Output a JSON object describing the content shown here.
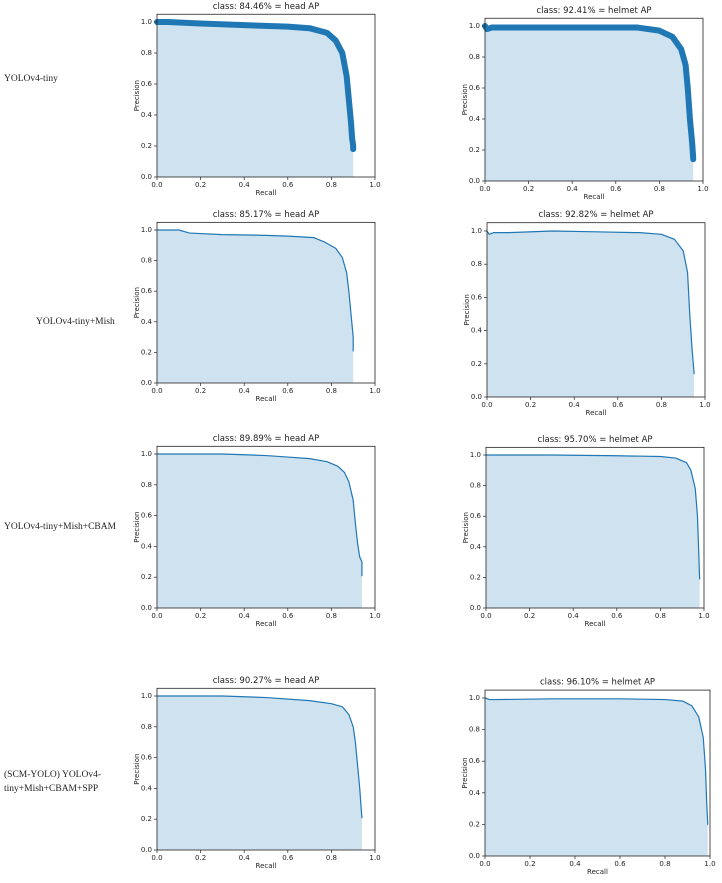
{
  "row_labels": [
    "YOLOv4-tiny",
    "YOLOv4-tiny+Mish",
    "YOLOv4-tiny+Mish+CBAM",
    "(SCM-YOLO) YOLOv4-tiny+Mish+CBAM+SPP"
  ],
  "chart_data": [
    {
      "type": "area",
      "title": "class: 84.46% = head AP",
      "xlabel": "Recall",
      "ylabel": "Precision",
      "line_width": 6,
      "xlim": [
        0,
        1
      ],
      "ylim": [
        0,
        1.05
      ],
      "xticks": [
        {
          "value": 0,
          "label": "0.0"
        },
        {
          "value": 0.2,
          "label": "0.2"
        },
        {
          "value": 0.4,
          "label": "0.4"
        },
        {
          "value": 0.6,
          "label": "0.6"
        },
        {
          "value": 0.8,
          "label": "0.8"
        },
        {
          "value": 1,
          "label": "1.0"
        }
      ],
      "yticks": [
        {
          "value": 0,
          "label": "0.0"
        },
        {
          "value": 0.2,
          "label": "0.2"
        },
        {
          "value": 0.4,
          "label": "0.4"
        },
        {
          "value": 0.6,
          "label": "0.6"
        },
        {
          "value": 0.8,
          "label": "0.8"
        },
        {
          "value": 1,
          "label": "1.0"
        }
      ],
      "series": [
        {
          "color": "#1f77b4",
          "fill": "#cfe2f0",
          "x": [
            0,
            0.05,
            0.2,
            0.4,
            0.6,
            0.7,
            0.78,
            0.82,
            0.85,
            0.87,
            0.88,
            0.89,
            0.895,
            0.9,
            0.9
          ],
          "values": [
            1,
            1,
            0.99,
            0.98,
            0.97,
            0.96,
            0.93,
            0.88,
            0.8,
            0.65,
            0.5,
            0.35,
            0.25,
            0.2,
            0.18
          ]
        }
      ]
    },
    {
      "type": "area",
      "title": "class: 92.41% = helmet AP",
      "xlabel": "Recall",
      "ylabel": "Precision",
      "line_width": 6,
      "xlim": [
        0,
        1
      ],
      "ylim": [
        0,
        1.05
      ],
      "xticks": [
        {
          "value": 0,
          "label": "0.0"
        },
        {
          "value": 0.2,
          "label": "0.2"
        },
        {
          "value": 0.4,
          "label": "0.4"
        },
        {
          "value": 0.6,
          "label": "0.6"
        },
        {
          "value": 0.8,
          "label": "0.8"
        },
        {
          "value": 1,
          "label": "1.0"
        }
      ],
      "yticks": [
        {
          "value": 0,
          "label": "0.0"
        },
        {
          "value": 0.2,
          "label": "0.2"
        },
        {
          "value": 0.4,
          "label": "0.4"
        },
        {
          "value": 0.6,
          "label": "0.6"
        },
        {
          "value": 0.8,
          "label": "0.8"
        },
        {
          "value": 1,
          "label": "1.0"
        }
      ],
      "series": [
        {
          "color": "#1f77b4",
          "fill": "#cfe2f0",
          "x": [
            0,
            0.01,
            0.03,
            0.2,
            0.5,
            0.7,
            0.8,
            0.86,
            0.9,
            0.92,
            0.93,
            0.94,
            0.95,
            0.955,
            0.955
          ],
          "values": [
            1,
            0.98,
            0.99,
            0.99,
            0.99,
            0.99,
            0.97,
            0.93,
            0.85,
            0.75,
            0.6,
            0.4,
            0.25,
            0.15,
            0.14
          ]
        }
      ]
    },
    {
      "type": "area",
      "title": "class: 85.17% = head AP",
      "xlabel": "Recall",
      "ylabel": "Precision",
      "line_width": 1.2,
      "xlim": [
        0,
        1
      ],
      "ylim": [
        0,
        1.05
      ],
      "xticks": [
        {
          "value": 0,
          "label": "0.0"
        },
        {
          "value": 0.2,
          "label": "0.2"
        },
        {
          "value": 0.4,
          "label": "0.4"
        },
        {
          "value": 0.6,
          "label": "0.6"
        },
        {
          "value": 0.8,
          "label": "0.8"
        },
        {
          "value": 1,
          "label": "1.0"
        }
      ],
      "yticks": [
        {
          "value": 0,
          "label": "0.0"
        },
        {
          "value": 0.2,
          "label": "0.2"
        },
        {
          "value": 0.4,
          "label": "0.4"
        },
        {
          "value": 0.6,
          "label": "0.6"
        },
        {
          "value": 0.8,
          "label": "0.8"
        },
        {
          "value": 1,
          "label": "1.0"
        }
      ],
      "series": [
        {
          "color": "#1f77b4",
          "fill": "#cfe2f0",
          "x": [
            0,
            0.1,
            0.15,
            0.3,
            0.5,
            0.6,
            0.72,
            0.77,
            0.82,
            0.85,
            0.87,
            0.88,
            0.89,
            0.9,
            0.9
          ],
          "values": [
            1,
            1,
            0.98,
            0.97,
            0.965,
            0.96,
            0.95,
            0.92,
            0.88,
            0.82,
            0.72,
            0.6,
            0.45,
            0.3,
            0.21
          ]
        }
      ]
    },
    {
      "type": "area",
      "title": "class: 92.82% = helmet AP",
      "xlabel": "Recall",
      "ylabel": "Precision",
      "line_width": 1.2,
      "xlim": [
        0,
        1
      ],
      "ylim": [
        0,
        1.05
      ],
      "xticks": [
        {
          "value": 0,
          "label": "0.0"
        },
        {
          "value": 0.2,
          "label": "0.2"
        },
        {
          "value": 0.4,
          "label": "0.4"
        },
        {
          "value": 0.6,
          "label": "0.6"
        },
        {
          "value": 0.8,
          "label": "0.8"
        },
        {
          "value": 1,
          "label": "1.0"
        }
      ],
      "yticks": [
        {
          "value": 0,
          "label": "0.0"
        },
        {
          "value": 0.2,
          "label": "0.2"
        },
        {
          "value": 0.4,
          "label": "0.4"
        },
        {
          "value": 0.6,
          "label": "0.6"
        },
        {
          "value": 0.8,
          "label": "0.8"
        },
        {
          "value": 1,
          "label": "1.0"
        }
      ],
      "series": [
        {
          "color": "#1f77b4",
          "fill": "#cfe2f0",
          "x": [
            0,
            0.01,
            0.03,
            0.1,
            0.3,
            0.5,
            0.7,
            0.8,
            0.86,
            0.9,
            0.92,
            0.93,
            0.94,
            0.95
          ],
          "values": [
            1,
            0.98,
            0.99,
            0.99,
            1,
            0.995,
            0.99,
            0.98,
            0.95,
            0.88,
            0.75,
            0.5,
            0.3,
            0.14
          ]
        }
      ]
    },
    {
      "type": "area",
      "title": "class: 89.89% = head AP",
      "xlabel": "Recall",
      "ylabel": "Precision",
      "line_width": 1.2,
      "xlim": [
        0,
        1
      ],
      "ylim": [
        0,
        1.05
      ],
      "xticks": [
        {
          "value": 0,
          "label": "0.0"
        },
        {
          "value": 0.2,
          "label": "0.2"
        },
        {
          "value": 0.4,
          "label": "0.4"
        },
        {
          "value": 0.6,
          "label": "0.6"
        },
        {
          "value": 0.8,
          "label": "0.8"
        },
        {
          "value": 1,
          "label": "1.0"
        }
      ],
      "yticks": [
        {
          "value": 0,
          "label": "0.0"
        },
        {
          "value": 0.2,
          "label": "0.2"
        },
        {
          "value": 0.4,
          "label": "0.4"
        },
        {
          "value": 0.6,
          "label": "0.6"
        },
        {
          "value": 0.8,
          "label": "0.8"
        },
        {
          "value": 1,
          "label": "1.0"
        }
      ],
      "series": [
        {
          "color": "#1f77b4",
          "fill": "#cfe2f0",
          "x": [
            0,
            0.3,
            0.5,
            0.6,
            0.7,
            0.78,
            0.83,
            0.86,
            0.88,
            0.9,
            0.91,
            0.92,
            0.93,
            0.94,
            0.94
          ],
          "values": [
            1,
            1,
            0.99,
            0.98,
            0.97,
            0.95,
            0.92,
            0.88,
            0.82,
            0.7,
            0.55,
            0.42,
            0.33,
            0.3,
            0.21
          ]
        }
      ]
    },
    {
      "type": "area",
      "title": "class: 95.70% = helmet AP",
      "xlabel": "Recall",
      "ylabel": "Precision",
      "line_width": 1.2,
      "xlim": [
        0,
        1
      ],
      "ylim": [
        0,
        1.05
      ],
      "xticks": [
        {
          "value": 0,
          "label": "0.0"
        },
        {
          "value": 0.2,
          "label": "0.2"
        },
        {
          "value": 0.4,
          "label": "0.4"
        },
        {
          "value": 0.6,
          "label": "0.6"
        },
        {
          "value": 0.8,
          "label": "0.8"
        },
        {
          "value": 1,
          "label": "1.0"
        }
      ],
      "yticks": [
        {
          "value": 0,
          "label": "0.0"
        },
        {
          "value": 0.2,
          "label": "0.2"
        },
        {
          "value": 0.4,
          "label": "0.4"
        },
        {
          "value": 0.6,
          "label": "0.6"
        },
        {
          "value": 0.8,
          "label": "0.8"
        },
        {
          "value": 1,
          "label": "1.0"
        }
      ],
      "series": [
        {
          "color": "#1f77b4",
          "fill": "#cfe2f0",
          "x": [
            0,
            0.3,
            0.6,
            0.8,
            0.87,
            0.92,
            0.94,
            0.96,
            0.97,
            0.975,
            0.98
          ],
          "values": [
            1,
            1,
            0.995,
            0.99,
            0.98,
            0.95,
            0.9,
            0.78,
            0.6,
            0.4,
            0.19
          ]
        }
      ]
    },
    {
      "type": "area",
      "title": "class: 90.27% = head AP",
      "xlabel": "Recall",
      "ylabel": "Precision",
      "line_width": 1.2,
      "xlim": [
        0,
        1
      ],
      "ylim": [
        0,
        1.05
      ],
      "xticks": [
        {
          "value": 0,
          "label": "0.0"
        },
        {
          "value": 0.2,
          "label": "0.2"
        },
        {
          "value": 0.4,
          "label": "0.4"
        },
        {
          "value": 0.6,
          "label": "0.6"
        },
        {
          "value": 0.8,
          "label": "0.8"
        },
        {
          "value": 1,
          "label": "1.0"
        }
      ],
      "yticks": [
        {
          "value": 0,
          "label": "0.0"
        },
        {
          "value": 0.2,
          "label": "0.2"
        },
        {
          "value": 0.4,
          "label": "0.4"
        },
        {
          "value": 0.6,
          "label": "0.6"
        },
        {
          "value": 0.8,
          "label": "0.8"
        },
        {
          "value": 1,
          "label": "1.0"
        }
      ],
      "series": [
        {
          "color": "#1f77b4",
          "fill": "#cfe2f0",
          "x": [
            0,
            0.3,
            0.5,
            0.7,
            0.8,
            0.85,
            0.88,
            0.9,
            0.91,
            0.92,
            0.93,
            0.935,
            0.94
          ],
          "values": [
            1,
            1,
            0.99,
            0.97,
            0.95,
            0.93,
            0.88,
            0.8,
            0.7,
            0.55,
            0.4,
            0.3,
            0.21
          ]
        }
      ]
    },
    {
      "type": "area",
      "title": "class: 96.10% = helmet AP",
      "xlabel": "Recall",
      "ylabel": "Precision",
      "line_width": 1.2,
      "xlim": [
        0,
        1
      ],
      "ylim": [
        0,
        1.05
      ],
      "xticks": [
        {
          "value": 0,
          "label": "0.0"
        },
        {
          "value": 0.2,
          "label": "0.2"
        },
        {
          "value": 0.4,
          "label": "0.4"
        },
        {
          "value": 0.6,
          "label": "0.6"
        },
        {
          "value": 0.8,
          "label": "0.8"
        },
        {
          "value": 1,
          "label": "1.0"
        }
      ],
      "yticks": [
        {
          "value": 0,
          "label": "0.0"
        },
        {
          "value": 0.2,
          "label": "0.2"
        },
        {
          "value": 0.4,
          "label": "0.4"
        },
        {
          "value": 0.6,
          "label": "0.6"
        },
        {
          "value": 0.8,
          "label": "0.8"
        },
        {
          "value": 1,
          "label": "1.0"
        }
      ],
      "series": [
        {
          "color": "#1f77b4",
          "fill": "#cfe2f0",
          "x": [
            0,
            0.02,
            0.05,
            0.3,
            0.6,
            0.8,
            0.88,
            0.92,
            0.95,
            0.97,
            0.98,
            0.985,
            0.99
          ],
          "values": [
            1,
            0.99,
            0.99,
            0.995,
            0.995,
            0.99,
            0.98,
            0.95,
            0.88,
            0.75,
            0.55,
            0.35,
            0.2
          ]
        }
      ]
    }
  ]
}
